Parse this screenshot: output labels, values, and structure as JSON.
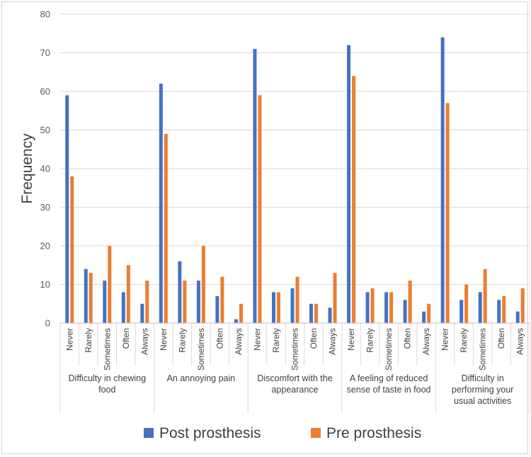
{
  "chart_data": {
    "type": "bar",
    "title": "",
    "xlabel": "",
    "ylabel": "Frequency",
    "ylim": [
      0,
      80
    ],
    "yticks": [
      0,
      10,
      20,
      30,
      40,
      50,
      60,
      70,
      80
    ],
    "grid": true,
    "legend_position": "bottom",
    "groups": [
      {
        "label": [
          "Difficulty in chewing",
          "food"
        ]
      },
      {
        "label": [
          "An annoying pain"
        ]
      },
      {
        "label": [
          "Discomfort with the",
          "appearance"
        ]
      },
      {
        "label": [
          "A feeling of reduced",
          "sense of taste in food"
        ]
      },
      {
        "label": [
          "Difficulty in",
          "performing your",
          "usual activities"
        ]
      }
    ],
    "categories": [
      "Never",
      "Rarely",
      "Sometimes",
      "Often",
      "Always"
    ],
    "series": [
      {
        "name": "Post prosthesis",
        "color": "#4472C4",
        "values": [
          [
            59,
            14,
            11,
            8,
            5
          ],
          [
            62,
            16,
            11,
            7,
            1
          ],
          [
            71,
            8,
            9,
            5,
            4
          ],
          [
            72,
            8,
            8,
            6,
            3
          ],
          [
            74,
            6,
            8,
            6,
            3
          ]
        ]
      },
      {
        "name": "Pre prosthesis",
        "color": "#ED7D31",
        "values": [
          [
            38,
            13,
            20,
            15,
            11
          ],
          [
            49,
            11,
            20,
            12,
            5
          ],
          [
            59,
            8,
            12,
            5,
            13
          ],
          [
            64,
            9,
            8,
            11,
            5
          ],
          [
            57,
            10,
            14,
            7,
            9
          ]
        ]
      }
    ]
  }
}
